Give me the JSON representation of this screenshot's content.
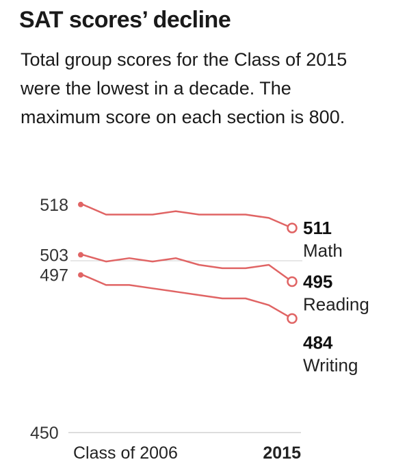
{
  "title": "SAT scores’ decline",
  "subtitle": "Total group scores for the Class of 2015 were the lowest in a decade. The maximum score on each section is 800.",
  "chart_data": {
    "type": "line",
    "x": [
      2006,
      2007,
      2008,
      2009,
      2010,
      2011,
      2012,
      2013,
      2014,
      2015
    ],
    "x_tick_labels": [
      "Class of 2006",
      "2015"
    ],
    "y_axis_min": 450,
    "y_tick_label": "450",
    "ylim": [
      450,
      520
    ],
    "color": "#e06464",
    "grid": false,
    "series": [
      {
        "name": "Math",
        "values": [
          518,
          515,
          515,
          515,
          516,
          515,
          515,
          515,
          514,
          511
        ],
        "start_label": "518",
        "end_label": "511"
      },
      {
        "name": "Reading",
        "values": [
          503,
          501,
          502,
          501,
          502,
          500,
          499,
          499,
          500,
          495
        ],
        "start_label": "503",
        "end_label": "495"
      },
      {
        "name": "Writing",
        "values": [
          497,
          494,
          494,
          493,
          492,
          491,
          490,
          490,
          488,
          484
        ],
        "start_label": "497",
        "end_label": "484"
      }
    ]
  }
}
